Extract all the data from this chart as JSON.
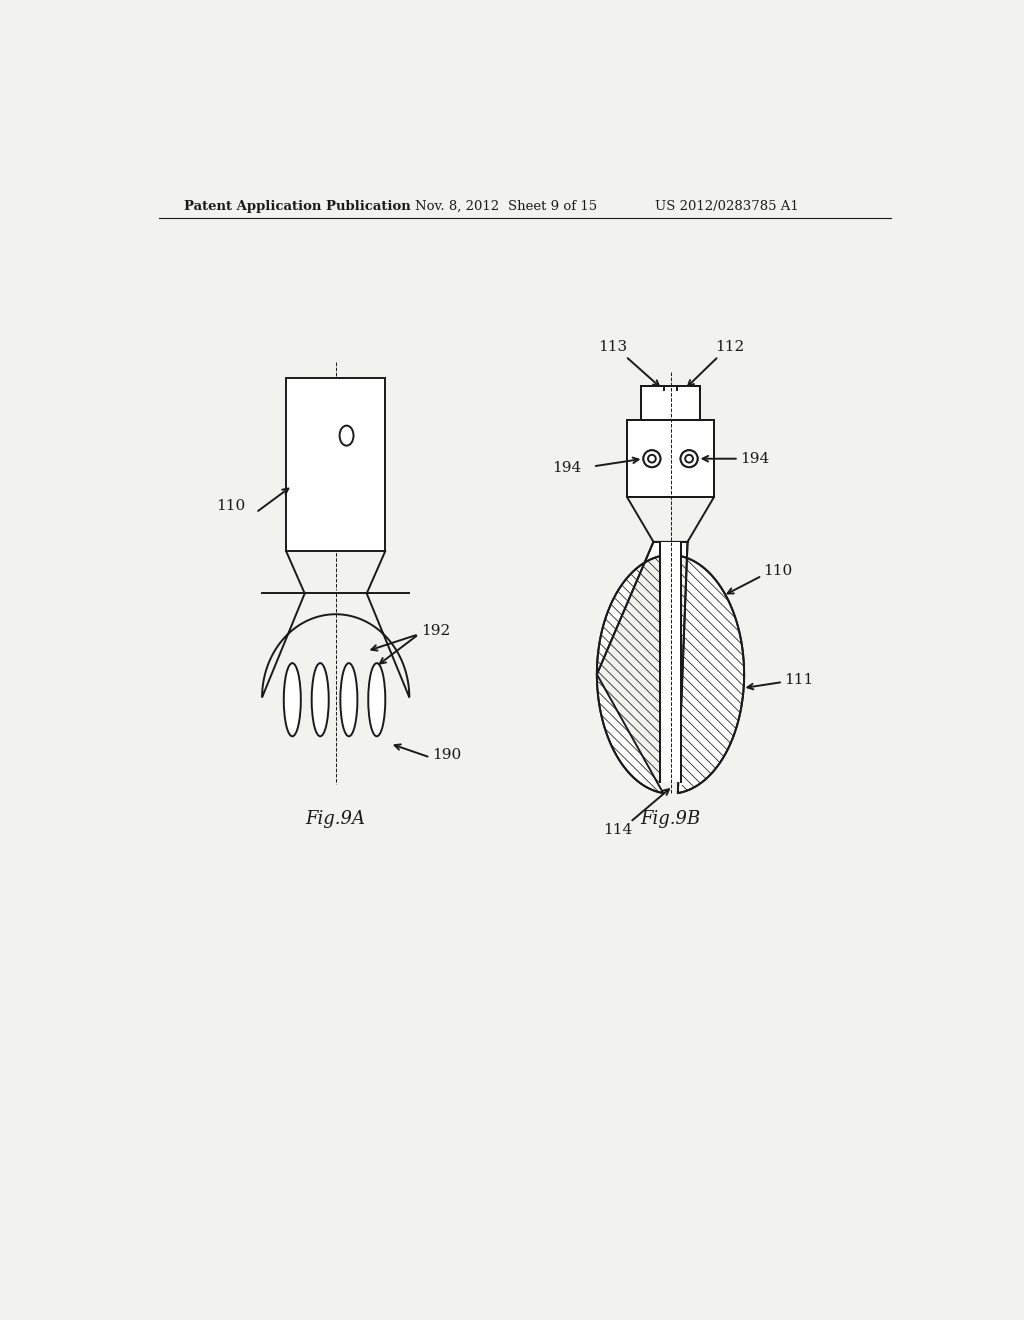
{
  "bg_color": "#f2f2ee",
  "line_color": "#1a1a1a",
  "header_text": "Patent Application Publication",
  "header_date": "Nov. 8, 2012",
  "header_sheet": "Sheet 9 of 15",
  "header_patent": "US 2012/0283785 A1",
  "fig9a_label": "Fig.9A",
  "fig9b_label": "Fig.9B",
  "label_110_left": "110",
  "label_192": "192",
  "label_190": "190",
  "label_113": "113",
  "label_112": "112",
  "label_194_left": "194",
  "label_194_right": "194",
  "label_110_right": "110",
  "label_111": "111",
  "label_114": "114"
}
